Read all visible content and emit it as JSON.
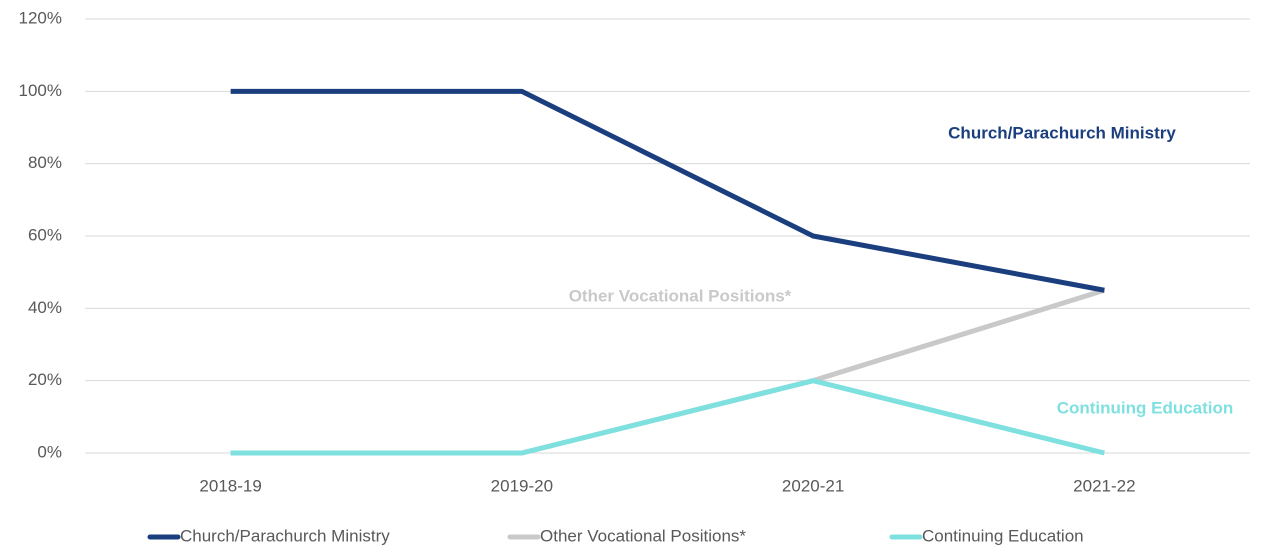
{
  "chart_data": {
    "type": "line",
    "categories": [
      "2018-19",
      "2019-20",
      "2020-21",
      "2021-22"
    ],
    "series": [
      {
        "name": "Church/Parachurch Ministry",
        "color": "#1b3f7e",
        "values": [
          100,
          100,
          60,
          45
        ]
      },
      {
        "name": "Other Vocational Positions*",
        "color": "#c9c9c9",
        "values": [
          0,
          0,
          20,
          45
        ]
      },
      {
        "name": "Continuing Education",
        "color": "#7ee0df",
        "values": [
          0,
          0,
          20,
          0
        ]
      }
    ],
    "ylim": [
      0,
      120
    ],
    "yticks": [
      {
        "value": 0,
        "label": "0%"
      },
      {
        "value": 20,
        "label": "20%"
      },
      {
        "value": 40,
        "label": "40%"
      },
      {
        "value": 60,
        "label": "60%"
      },
      {
        "value": 80,
        "label": "80%"
      },
      {
        "value": 100,
        "label": "100%"
      },
      {
        "value": 120,
        "label": "120%"
      }
    ],
    "grid": true,
    "legend": "bottom"
  }
}
